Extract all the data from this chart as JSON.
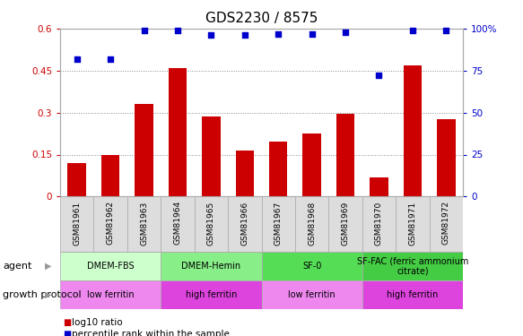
{
  "title": "GDS2230 / 8575",
  "categories": [
    "GSM81961",
    "GSM81962",
    "GSM81963",
    "GSM81964",
    "GSM81965",
    "GSM81966",
    "GSM81967",
    "GSM81968",
    "GSM81969",
    "GSM81970",
    "GSM81971",
    "GSM81972"
  ],
  "log10_ratio": [
    0.12,
    0.15,
    0.33,
    0.46,
    0.285,
    0.165,
    0.195,
    0.225,
    0.295,
    0.07,
    0.47,
    0.275
  ],
  "percentile_rank": [
    82,
    82,
    99,
    99,
    96,
    96,
    97,
    97,
    98,
    72,
    99,
    99
  ],
  "bar_color": "#cc0000",
  "dot_color": "#0000cc",
  "left_yaxis_color": "#cc0000",
  "right_yaxis_color": "#0000cc",
  "ylim_left": [
    0,
    0.6
  ],
  "ylim_right": [
    0,
    100
  ],
  "yticks_left": [
    0,
    0.15,
    0.3,
    0.45,
    0.6
  ],
  "yticks_right": [
    0,
    25,
    50,
    75,
    100
  ],
  "ytick_labels_left": [
    "0",
    "0.15",
    "0.3",
    "0.45",
    "0.6"
  ],
  "ytick_labels_right": [
    "0",
    "25",
    "50",
    "75",
    "100%"
  ],
  "agent_groups": [
    {
      "label": "DMEM-FBS",
      "start": 0,
      "end": 3,
      "color": "#ccffcc"
    },
    {
      "label": "DMEM-Hemin",
      "start": 3,
      "end": 6,
      "color": "#88ee88"
    },
    {
      "label": "SF-0",
      "start": 6,
      "end": 9,
      "color": "#55dd55"
    },
    {
      "label": "SF-FAC (ferric ammonium\ncitrate)",
      "start": 9,
      "end": 12,
      "color": "#44cc44"
    }
  ],
  "protocol_groups": [
    {
      "label": "low ferritin",
      "start": 0,
      "end": 3,
      "color": "#ee88ee"
    },
    {
      "label": "high ferritin",
      "start": 3,
      "end": 6,
      "color": "#dd44dd"
    },
    {
      "label": "low ferritin",
      "start": 6,
      "end": 9,
      "color": "#ee88ee"
    },
    {
      "label": "high ferritin",
      "start": 9,
      "end": 12,
      "color": "#dd44dd"
    }
  ],
  "legend_red_label": "log10 ratio",
  "legend_blue_label": "percentile rank within the sample",
  "bar_color_legend": "#cc0000",
  "dot_color_legend": "#0000cc",
  "background_color": "#ffffff",
  "grid_color": "#888888",
  "title_fontsize": 11,
  "tick_fontsize": 7.5,
  "label_fontsize": 8
}
